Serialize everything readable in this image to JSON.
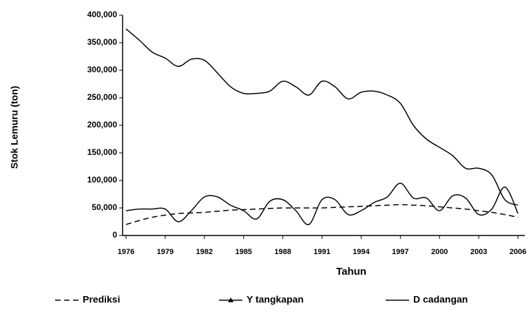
{
  "chart_data": {
    "type": "line",
    "x_label": "Tahun",
    "y_label": "Stok Lemuru (ton)",
    "x": [
      1976,
      1977,
      1978,
      1979,
      1980,
      1981,
      1982,
      1983,
      1984,
      1985,
      1986,
      1987,
      1988,
      1989,
      1990,
      1991,
      1992,
      1993,
      1994,
      1995,
      1996,
      1997,
      1998,
      1999,
      2000,
      2001,
      2002,
      2003,
      2004,
      2005,
      2006
    ],
    "series": [
      {
        "name": "Prediksi",
        "color": "#000000",
        "dash": "dashed",
        "marker": "none",
        "values": [
          20000,
          27000,
          33000,
          37000,
          40000,
          41000,
          42000,
          44000,
          46000,
          47000,
          48000,
          49000,
          50000,
          50000,
          50000,
          50000,
          51000,
          52000,
          53000,
          54000,
          55000,
          56000,
          55000,
          54000,
          52000,
          50000,
          48000,
          45000,
          42000,
          38000,
          33000
        ]
      },
      {
        "name": "Y tangkapan",
        "color": "#000000",
        "dash": "solid",
        "marker": "triangle",
        "values": [
          45000,
          48000,
          48000,
          48000,
          25000,
          45000,
          70000,
          70000,
          55000,
          45000,
          30000,
          62000,
          65000,
          45000,
          20000,
          65000,
          65000,
          38000,
          45000,
          60000,
          70000,
          95000,
          68000,
          68000,
          45000,
          72000,
          68000,
          38000,
          48000,
          88000,
          40000
        ]
      },
      {
        "name": "D cadangan",
        "color": "#000000",
        "dash": "solid",
        "marker": "none",
        "values": [
          375000,
          355000,
          333000,
          322000,
          307000,
          320000,
          318000,
          295000,
          270000,
          258000,
          258000,
          262000,
          280000,
          270000,
          255000,
          280000,
          270000,
          248000,
          260000,
          262000,
          255000,
          240000,
          200000,
          175000,
          160000,
          145000,
          122000,
          122000,
          110000,
          65000,
          55000
        ]
      }
    ],
    "xlim": [
      1976,
      2006
    ],
    "xticks": [
      1976,
      1979,
      1982,
      1985,
      1988,
      1991,
      1994,
      1997,
      2000,
      2003,
      2006
    ],
    "ylim": [
      0,
      400000
    ],
    "yticks": [
      0,
      {
        "value": 50000,
        "label": "50,000"
      },
      {
        "value": 100000,
        "label": "100,000"
      },
      {
        "value": 150000,
        "label": "150,000"
      },
      {
        "value": 200000,
        "label": "200,000"
      },
      {
        "value": 250000,
        "label": "250,000"
      },
      {
        "value": 300000,
        "label": "300,000"
      },
      {
        "value": 350000,
        "label": "350,000"
      },
      {
        "value": 400000,
        "label": "400,000"
      }
    ],
    "grid": false,
    "legend": "bottom"
  }
}
